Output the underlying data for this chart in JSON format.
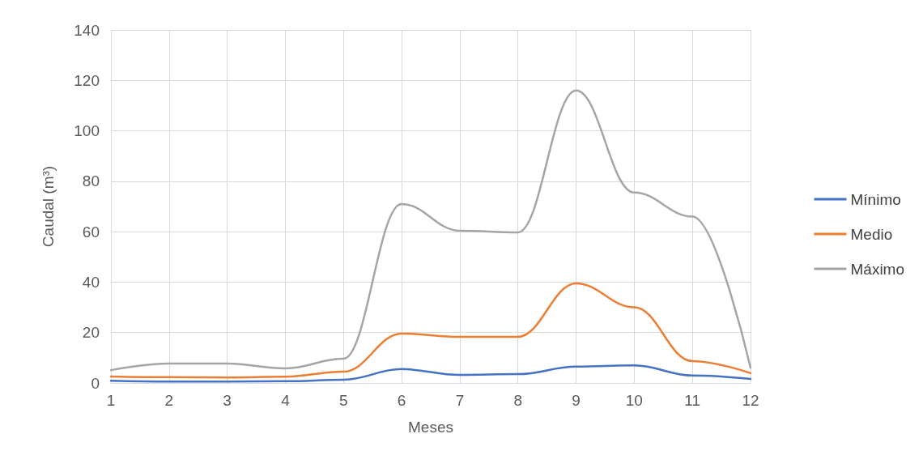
{
  "chart_data": {
    "type": "line",
    "xlabel": "Meses",
    "ylabel": "Caudal (m³)",
    "x": [
      1,
      2,
      3,
      4,
      5,
      6,
      7,
      8,
      9,
      10,
      11,
      12
    ],
    "series": [
      {
        "name": "Mínimo",
        "color": "#4472c4",
        "values": [
          0.9,
          0.6,
          0.6,
          0.7,
          1.3,
          5.5,
          3.2,
          3.5,
          6.5,
          7,
          3,
          1.6
        ]
      },
      {
        "name": "Medio",
        "color": "#ed7d31",
        "values": [
          2.6,
          2.3,
          2.2,
          2.5,
          4.5,
          19.6,
          18.3,
          18.3,
          39.5,
          30,
          8.7,
          3.9
        ]
      },
      {
        "name": "Máximo",
        "color": "#a5a5a5",
        "values": [
          5.1,
          7.7,
          7.7,
          5.8,
          9.6,
          71,
          60.4,
          59.7,
          116,
          75.5,
          66,
          6
        ]
      }
    ],
    "xlim": [
      1,
      12
    ],
    "xticks": [
      1,
      2,
      3,
      4,
      5,
      6,
      7,
      8,
      9,
      10,
      11,
      12
    ],
    "ylim": [
      0,
      140
    ],
    "yticks": [
      0,
      20,
      40,
      60,
      80,
      100,
      120,
      140
    ],
    "grid": true,
    "legend": "right",
    "marker": "none",
    "line_style": "solid"
  }
}
